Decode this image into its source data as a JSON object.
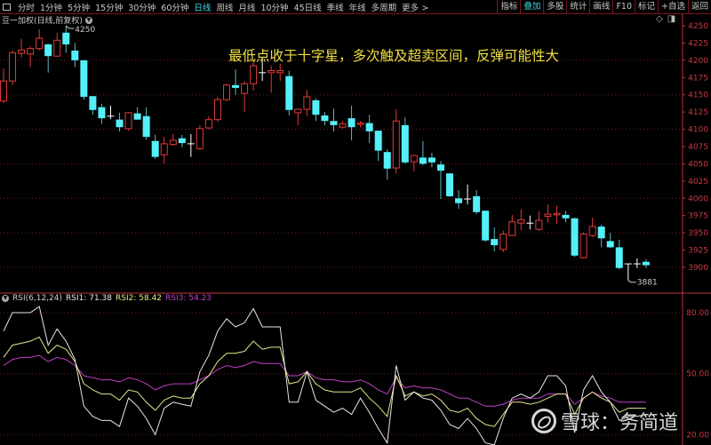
{
  "toolbar": {
    "periods": [
      "分时",
      "1分钟",
      "5分钟",
      "15分钟",
      "30分钟",
      "60分钟",
      "日线",
      "周线",
      "月线",
      "10分钟",
      "45日线",
      "季线",
      "年线",
      "多周期",
      "更多 >"
    ],
    "active_period": "日线",
    "right_buttons": [
      "指标",
      "叠加",
      "多股",
      "统计",
      "画线",
      "F10",
      "标记",
      "+自选",
      "返回"
    ],
    "active_right": "叠加"
  },
  "chart_title": "豆一加权(日线,前复权)",
  "annotation": "最低点收于十字星，多次触及超卖区间，反弹可能性大",
  "rsi_header": {
    "name": "RSI(6,12,24)",
    "rsi1": "RSI1: 71.38",
    "rsi2": "RSI2: 58.42",
    "rsi3": "RSI3: 54.23"
  },
  "watermark": "雪球：务简道",
  "colors": {
    "up": "#e03a3a",
    "down": "#54f0f8",
    "doji": "#ffffff",
    "rsi1": "#e8e8e8",
    "rsi2": "#e6e68a",
    "rsi3": "#c040c8",
    "axis": "#c0303a",
    "active": "#3fd6e0",
    "annotation": "#f0e040"
  },
  "chart_data": [
    {
      "type": "candlestick",
      "y_axis_ticks": [
        "4250",
        "4225",
        "4200",
        "4175",
        "4150",
        "4125",
        "4100",
        "4075",
        "4050",
        "4025",
        "4000",
        "3975",
        "3950",
        "3925",
        "3900"
      ],
      "ylim": [
        3870,
        4265
      ],
      "max_label": "4250",
      "min_label": "3881",
      "ohlc": [
        [
          4141,
          4188,
          4138,
          4170
        ],
        [
          4170,
          4214,
          4164,
          4211
        ],
        [
          4210,
          4231,
          4204,
          4215
        ],
        [
          4209,
          4220,
          4190,
          4217
        ],
        [
          4217,
          4245,
          4214,
          4232
        ],
        [
          4223,
          4224,
          4182,
          4206
        ],
        [
          4206,
          4240,
          4205,
          4229
        ],
        [
          4240,
          4250,
          4211,
          4223
        ],
        [
          4214,
          4225,
          4190,
          4200
        ],
        [
          4200,
          4200,
          4143,
          4147
        ],
        [
          4148,
          4148,
          4121,
          4128
        ],
        [
          4132,
          4137,
          4108,
          4116
        ],
        [
          4119,
          4134,
          4115,
          4119
        ],
        [
          4114,
          4124,
          4097,
          4103
        ],
        [
          4101,
          4125,
          4098,
          4124
        ],
        [
          4123,
          4132,
          4114,
          4114
        ],
        [
          4119,
          4132,
          4085,
          4089
        ],
        [
          4083,
          4092,
          4057,
          4060
        ],
        [
          4063,
          4089,
          4050,
          4079
        ],
        [
          4078,
          4093,
          4076,
          4084
        ],
        [
          4087,
          4092,
          4074,
          4080
        ],
        [
          4079,
          4093,
          4060,
          4079
        ],
        [
          4072,
          4106,
          4070,
          4101
        ],
        [
          4102,
          4119,
          4100,
          4114
        ],
        [
          4114,
          4147,
          4111,
          4143
        ],
        [
          4143,
          4166,
          4141,
          4164
        ],
        [
          4164,
          4187,
          4150,
          4160
        ],
        [
          4152,
          4170,
          4125,
          4166
        ],
        [
          4166,
          4199,
          4156,
          4192
        ],
        [
          4181,
          4205,
          4170,
          4182
        ],
        [
          4182,
          4192,
          4153,
          4185
        ],
        [
          4182,
          4195,
          4170,
          4185
        ],
        [
          4177,
          4185,
          4120,
          4128
        ],
        [
          4124,
          4130,
          4106,
          4129
        ],
        [
          4129,
          4157,
          4119,
          4147
        ],
        [
          4142,
          4145,
          4112,
          4121
        ],
        [
          4120,
          4125,
          4106,
          4112
        ],
        [
          4112,
          4130,
          4097,
          4106
        ],
        [
          4103,
          4112,
          4101,
          4108
        ],
        [
          4116,
          4134,
          4084,
          4103
        ],
        [
          4107,
          4112,
          4103,
          4109
        ],
        [
          4109,
          4121,
          4080,
          4097
        ],
        [
          4098,
          4098,
          4054,
          4069
        ],
        [
          4067,
          4071,
          4027,
          4043
        ],
        [
          4044,
          4129,
          4036,
          4112
        ],
        [
          4106,
          4117,
          4050,
          4052
        ],
        [
          4053,
          4063,
          4039,
          4062
        ],
        [
          4059,
          4083,
          4048,
          4050
        ],
        [
          4059,
          4066,
          4045,
          4052
        ],
        [
          4049,
          4054,
          3999,
          4040
        ],
        [
          4036,
          4037,
          4002,
          4003
        ],
        [
          4000,
          4012,
          3985,
          3993
        ],
        [
          3999,
          4020,
          3991,
          3999
        ],
        [
          4003,
          4012,
          3977,
          3980
        ],
        [
          3982,
          3982,
          3937,
          3939
        ],
        [
          3941,
          3958,
          3923,
          3932
        ],
        [
          3926,
          3953,
          3922,
          3948
        ],
        [
          3946,
          3976,
          3945,
          3966
        ],
        [
          3964,
          3984,
          3954,
          3969
        ],
        [
          3964,
          3975,
          3955,
          3964
        ],
        [
          3955,
          3981,
          3953,
          3968
        ],
        [
          3974,
          3991,
          3965,
          3977
        ],
        [
          3976,
          3989,
          3963,
          3978
        ],
        [
          3976,
          3982,
          3965,
          3971
        ],
        [
          3971,
          3972,
          3915,
          3917
        ],
        [
          3914,
          3951,
          3913,
          3948
        ],
        [
          3946,
          3972,
          3944,
          3959
        ],
        [
          3959,
          3962,
          3929,
          3942
        ],
        [
          3938,
          3950,
          3928,
          3929
        ],
        [
          3929,
          3940,
          3897,
          3899
        ],
        [
          3905,
          3905,
          3881,
          3905
        ],
        [
          3905,
          3913,
          3899,
          3905
        ],
        [
          3908,
          3912,
          3899,
          3903
        ]
      ]
    },
    {
      "type": "line",
      "title": "RSI(6,12,24)",
      "y_axis_ticks": [
        "80.00",
        "50.00",
        "20.00"
      ],
      "ylim": [
        13,
        83
      ],
      "series": [
        {
          "name": "RSI1",
          "values": [
            71,
            80,
            80,
            80,
            83,
            64,
            72,
            66,
            57,
            34,
            29,
            27,
            27,
            24,
            38,
            34,
            28,
            20,
            33,
            36,
            35,
            34,
            51,
            59,
            71,
            77,
            73,
            75,
            82,
            73,
            73,
            73,
            36,
            36,
            51,
            37,
            34,
            31,
            33,
            30,
            38,
            31,
            23,
            16,
            54,
            37,
            41,
            38,
            37,
            32,
            25,
            23,
            28,
            23,
            16,
            15,
            28,
            38,
            40,
            38,
            41,
            49,
            49,
            44,
            21,
            42,
            49,
            41,
            36,
            27,
            29,
            29,
            30
          ]
        },
        {
          "name": "RSI2",
          "values": [
            58,
            64,
            65,
            66,
            68,
            60,
            64,
            62,
            56,
            45,
            42,
            40,
            40,
            37,
            42,
            41,
            36,
            32,
            37,
            39,
            38,
            38,
            45,
            49,
            56,
            60,
            60,
            61,
            66,
            62,
            63,
            63,
            45,
            46,
            51,
            45,
            42,
            41,
            41,
            41,
            43,
            38,
            34,
            29,
            49,
            39,
            41,
            39,
            40,
            37,
            32,
            31,
            33,
            28,
            25,
            24,
            30,
            36,
            36,
            35,
            36,
            38,
            40,
            40,
            30,
            38,
            41,
            38,
            36,
            31,
            33,
            33,
            33
          ]
        },
        {
          "name": "RSI3",
          "values": [
            54,
            57,
            58,
            58,
            59,
            56,
            58,
            57,
            54,
            49,
            48,
            47,
            47,
            46,
            48,
            47,
            45,
            42,
            44,
            45,
            45,
            45,
            47,
            49,
            52,
            54,
            53,
            54,
            56,
            55,
            55,
            55,
            49,
            49,
            51,
            48,
            47,
            47,
            46,
            46,
            47,
            45,
            42,
            40,
            48,
            43,
            44,
            43,
            43,
            42,
            40,
            38,
            38,
            36,
            34,
            34,
            35,
            37,
            38,
            38,
            38,
            40,
            40,
            40,
            35,
            38,
            41,
            39,
            38,
            36,
            36,
            36,
            36
          ]
        }
      ]
    }
  ]
}
